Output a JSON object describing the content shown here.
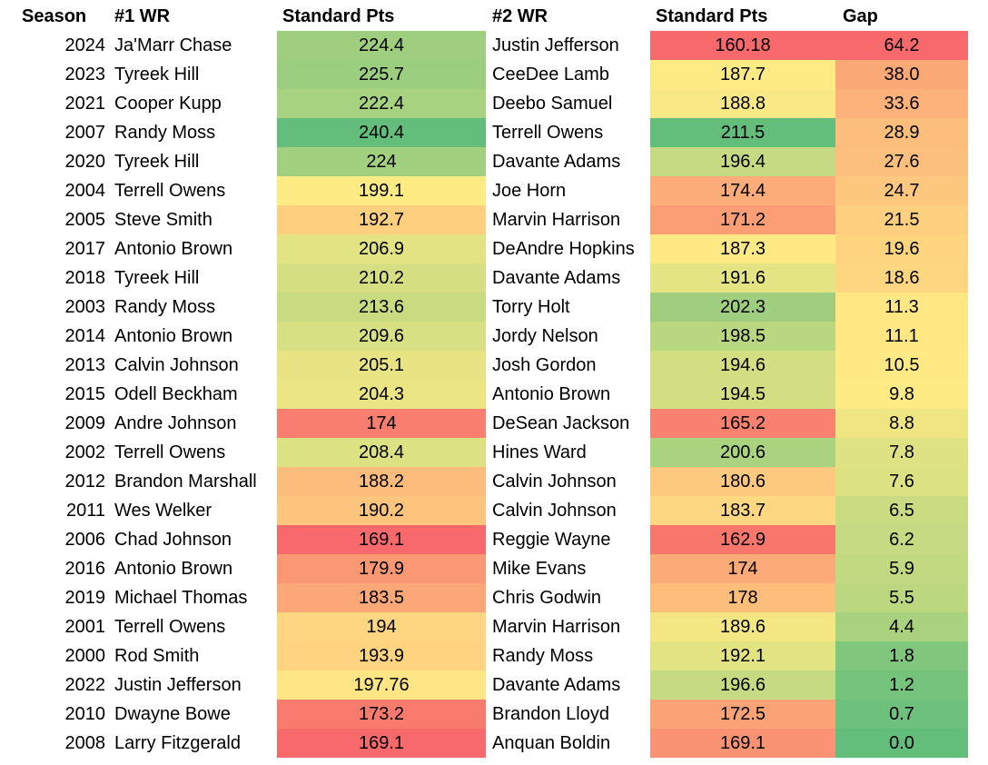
{
  "header": {
    "season": "Season",
    "wr1": "#1 WR",
    "pts1": "Standard Pts",
    "wr2": "#2 WR",
    "pts2": "Standard Pts",
    "gap": "Gap"
  },
  "rows": [
    {
      "season": "2024",
      "wr1": "Ja'Marr Chase",
      "pts1": "224.4",
      "wr2": "Justin Jefferson",
      "pts2": "160.18",
      "gap": "64.2"
    },
    {
      "season": "2023",
      "wr1": "Tyreek Hill",
      "pts1": "225.7",
      "wr2": "CeeDee Lamb",
      "pts2": "187.7",
      "gap": "38.0"
    },
    {
      "season": "2021",
      "wr1": "Cooper Kupp",
      "pts1": "222.4",
      "wr2": "Deebo Samuel",
      "pts2": "188.8",
      "gap": "33.6"
    },
    {
      "season": "2007",
      "wr1": "Randy Moss",
      "pts1": "240.4",
      "wr2": "Terrell Owens",
      "pts2": "211.5",
      "gap": "28.9"
    },
    {
      "season": "2020",
      "wr1": "Tyreek Hill",
      "pts1": "224",
      "wr2": "Davante Adams",
      "pts2": "196.4",
      "gap": "27.6"
    },
    {
      "season": "2004",
      "wr1": "Terrell Owens",
      "pts1": "199.1",
      "wr2": "Joe Horn",
      "pts2": "174.4",
      "gap": "24.7"
    },
    {
      "season": "2005",
      "wr1": "Steve Smith",
      "pts1": "192.7",
      "wr2": "Marvin Harrison",
      "pts2": "171.2",
      "gap": "21.5"
    },
    {
      "season": "2017",
      "wr1": "Antonio Brown",
      "pts1": "206.9",
      "wr2": "DeAndre Hopkins",
      "pts2": "187.3",
      "gap": "19.6"
    },
    {
      "season": "2018",
      "wr1": "Tyreek Hill",
      "pts1": "210.2",
      "wr2": "Davante Adams",
      "pts2": "191.6",
      "gap": "18.6"
    },
    {
      "season": "2003",
      "wr1": "Randy Moss",
      "pts1": "213.6",
      "wr2": "Torry Holt",
      "pts2": "202.3",
      "gap": "11.3"
    },
    {
      "season": "2014",
      "wr1": "Antonio Brown",
      "pts1": "209.6",
      "wr2": "Jordy Nelson",
      "pts2": "198.5",
      "gap": "11.1"
    },
    {
      "season": "2013",
      "wr1": "Calvin Johnson",
      "pts1": "205.1",
      "wr2": "Josh Gordon",
      "pts2": "194.6",
      "gap": "10.5"
    },
    {
      "season": "2015",
      "wr1": "Odell Beckham",
      "pts1": "204.3",
      "wr2": "Antonio Brown",
      "pts2": "194.5",
      "gap": "9.8"
    },
    {
      "season": "2009",
      "wr1": "Andre Johnson",
      "pts1": "174",
      "wr2": "DeSean Jackson",
      "pts2": "165.2",
      "gap": "8.8"
    },
    {
      "season": "2002",
      "wr1": "Terrell Owens",
      "pts1": "208.4",
      "wr2": "Hines Ward",
      "pts2": "200.6",
      "gap": "7.8"
    },
    {
      "season": "2012",
      "wr1": "Brandon Marshall",
      "pts1": "188.2",
      "wr2": "Calvin Johnson",
      "pts2": "180.6",
      "gap": "7.6"
    },
    {
      "season": "2011",
      "wr1": "Wes Welker",
      "pts1": "190.2",
      "wr2": "Calvin Johnson",
      "pts2": "183.7",
      "gap": "6.5"
    },
    {
      "season": "2006",
      "wr1": "Chad Johnson",
      "pts1": "169.1",
      "wr2": "Reggie Wayne",
      "pts2": "162.9",
      "gap": "6.2"
    },
    {
      "season": "2016",
      "wr1": "Antonio Brown",
      "pts1": "179.9",
      "wr2": "Mike Evans",
      "pts2": "174",
      "gap": "5.9"
    },
    {
      "season": "2019",
      "wr1": "Michael Thomas",
      "pts1": "183.5",
      "wr2": "Chris Godwin",
      "pts2": "178",
      "gap": "5.5"
    },
    {
      "season": "2001",
      "wr1": "Terrell Owens",
      "pts1": "194",
      "wr2": "Marvin Harrison",
      "pts2": "189.6",
      "gap": "4.4"
    },
    {
      "season": "2000",
      "wr1": "Rod Smith",
      "pts1": "193.9",
      "wr2": "Randy Moss",
      "pts2": "192.1",
      "gap": "1.8"
    },
    {
      "season": "2022",
      "wr1": "Justin Jefferson",
      "pts1": "197.76",
      "wr2": "Davante Adams",
      "pts2": "196.6",
      "gap": "1.2"
    },
    {
      "season": "2010",
      "wr1": "Dwayne Bowe",
      "pts1": "173.2",
      "wr2": "Brandon Lloyd",
      "pts2": "172.5",
      "gap": "0.7"
    },
    {
      "season": "2008",
      "wr1": "Larry Fitzgerald",
      "pts1": "169.1",
      "wr2": "Anquan Boldin",
      "pts2": "169.1",
      "gap": "0.0"
    }
  ],
  "scale_colors": {
    "low": "#f8696b",
    "mid": "#ffeb84",
    "high": "#63be7b"
  }
}
